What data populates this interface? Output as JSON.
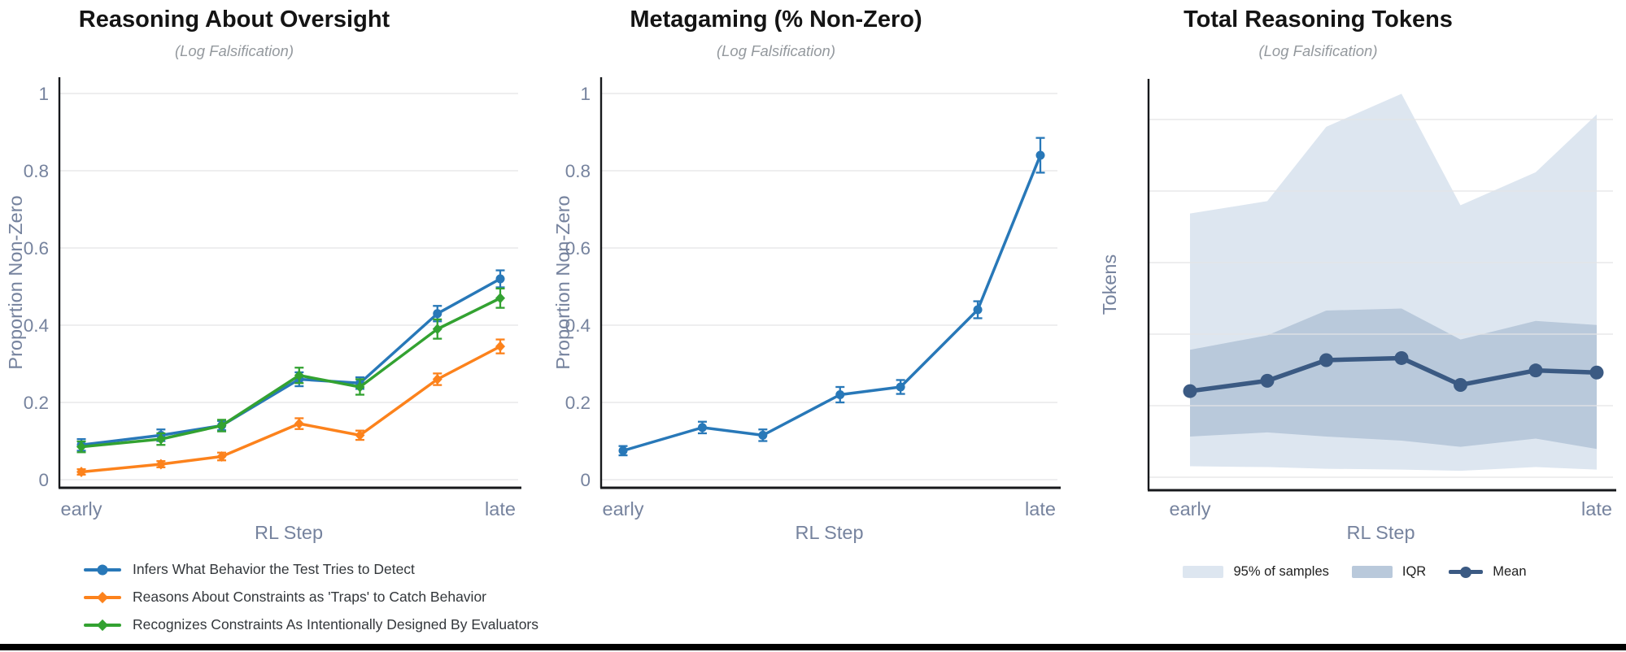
{
  "page": {
    "background": "#ffffff",
    "bottom_bar_color": "#000000"
  },
  "colors": {
    "blue": "#2878b8",
    "orange": "#fc821c",
    "green": "#33a231",
    "navy_mean": "#3b5a83",
    "iqr_band": "#b9c9db",
    "p95_band": "#dde6f0",
    "axis_text": "#76839e",
    "gridline": "#e4e4e6",
    "spine": "#17191c",
    "title_text": "#141414",
    "subtitle_text": "#94999e"
  },
  "chart_data": [
    {
      "type": "line",
      "title": "Reasoning About Oversight",
      "subtitle": "(Log Falsification)",
      "xlabel": "RL Step",
      "ylabel": "Proportion Non-Zero",
      "x_tick_labels": [
        "early",
        "late"
      ],
      "x_positions_relative": [
        0,
        0.19,
        0.335,
        0.52,
        0.665,
        0.85,
        1
      ],
      "ylim": [
        0,
        1.05
      ],
      "grid": true,
      "legend_position": "below-left",
      "yticks": [
        {
          "label": "0",
          "value": 0
        },
        {
          "label": "0.2",
          "value": 0.2
        },
        {
          "label": "0.4",
          "value": 0.4
        },
        {
          "label": "0.6",
          "value": 0.6
        },
        {
          "label": "0.8",
          "value": 0.8
        },
        {
          "label": "1",
          "value": 1
        }
      ],
      "series": [
        {
          "name": "Infers What Behavior the Test Tries to Detect",
          "color": "#2878b8",
          "marker": "circle",
          "values": [
            0.09,
            0.115,
            0.14,
            0.26,
            0.25,
            0.43,
            0.52
          ],
          "errors": [
            0.015,
            0.015,
            0.012,
            0.018,
            0.015,
            0.02,
            0.022
          ]
        },
        {
          "name": "Reasons About Constraints as 'Traps' to Catch Behavior",
          "color": "#fc821c",
          "marker": "diamond",
          "values": [
            0.02,
            0.04,
            0.06,
            0.145,
            0.115,
            0.26,
            0.345
          ],
          "errors": [
            0.007,
            0.008,
            0.01,
            0.014,
            0.012,
            0.015,
            0.018
          ]
        },
        {
          "name": "Recognizes Constraints As Intentionally Designed By Evaluators",
          "color": "#33a231",
          "marker": "diamond",
          "values": [
            0.085,
            0.105,
            0.14,
            0.27,
            0.24,
            0.39,
            0.47
          ],
          "errors": [
            0.014,
            0.015,
            0.015,
            0.02,
            0.02,
            0.025,
            0.025
          ]
        }
      ]
    },
    {
      "type": "line",
      "title": "Metagaming (% Non-Zero)",
      "subtitle": "(Log Falsification)",
      "xlabel": "RL Step",
      "ylabel": "Proportion Non-Zero",
      "x_tick_labels": [
        "early",
        "late"
      ],
      "x_positions_relative": [
        0,
        0.19,
        0.335,
        0.52,
        0.665,
        0.85,
        1
      ],
      "ylim": [
        0,
        1.05
      ],
      "grid": true,
      "legend_position": "none",
      "yticks": [
        {
          "label": "0",
          "value": 0
        },
        {
          "label": "0.2",
          "value": 0.2
        },
        {
          "label": "0.4",
          "value": 0.4
        },
        {
          "label": "0.6",
          "value": 0.6
        },
        {
          "label": "0.8",
          "value": 0.8
        },
        {
          "label": "1",
          "value": 1
        }
      ],
      "series": [
        {
          "name": "Metagaming proportion non-zero",
          "color": "#2878b8",
          "marker": "circle",
          "values": [
            0.075,
            0.135,
            0.115,
            0.22,
            0.24,
            0.44,
            0.84
          ],
          "errors": [
            0.012,
            0.015,
            0.015,
            0.02,
            0.018,
            0.022,
            0.045
          ]
        }
      ]
    },
    {
      "type": "area",
      "title": "Total Reasoning Tokens",
      "subtitle": "(Log Falsification)",
      "xlabel": "RL Step",
      "ylabel": "Tokens",
      "x_tick_labels": [
        "early",
        "late"
      ],
      "x_positions_relative": [
        0,
        0.19,
        0.335,
        0.52,
        0.665,
        0.85,
        1
      ],
      "y_axis_note": "y axis has gridlines but no numeric tick labels; values are fractions of visible axis height",
      "grid": true,
      "legend_position": "below-center",
      "bands": [
        {
          "name": "95% of samples",
          "color": "#dde6f0",
          "upper": [
            0.67,
            0.7,
            0.88,
            0.96,
            0.69,
            0.77,
            0.91
          ],
          "lower": [
            0.058,
            0.056,
            0.052,
            0.05,
            0.047,
            0.056,
            0.05
          ]
        },
        {
          "name": "IQR",
          "color": "#b9c9db",
          "upper": [
            0.34,
            0.375,
            0.435,
            0.44,
            0.365,
            0.41,
            0.4
          ],
          "lower": [
            0.13,
            0.14,
            0.13,
            0.12,
            0.105,
            0.125,
            0.1
          ]
        }
      ],
      "series": [
        {
          "name": "Mean",
          "color": "#3b5a83",
          "marker": "circle",
          "values": [
            0.24,
            0.265,
            0.315,
            0.32,
            0.255,
            0.29,
            0.285
          ]
        }
      ]
    }
  ]
}
